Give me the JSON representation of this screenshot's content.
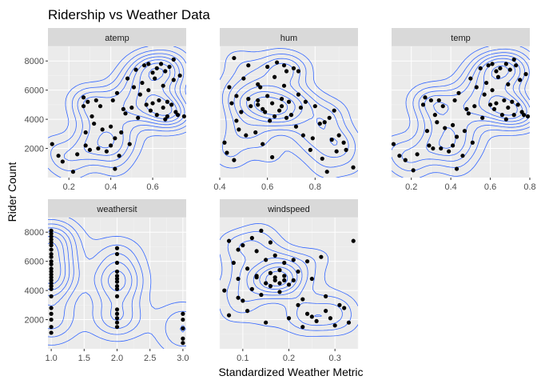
{
  "colors": {
    "panel_bg": "#ebebeb",
    "strip_bg": "#d9d9d9",
    "grid_major": "#ffffff",
    "grid_minor": "#f4f4f4",
    "tick": "#333333",
    "contour": "#3366ff",
    "point": "#000000"
  },
  "chart_data": {
    "type": "scatter",
    "title": "Ridership vs Weather Data",
    "xlabel": "Standardized Weather Metric",
    "ylabel": "Rider Count",
    "overlay": "2d density contours",
    "grid": true,
    "scales": "free_x",
    "ylim": [
      0,
      9000
    ],
    "y_ticks": [
      2000,
      4000,
      6000,
      8000
    ],
    "y_tick_labels": [
      "2000",
      "4000",
      "6000",
      "8000"
    ],
    "panels": [
      {
        "name": "atemp",
        "xlim": [
          0.1,
          0.76
        ],
        "x_ticks": [
          0.2,
          0.4,
          0.6
        ],
        "x_tick_labels": [
          "0.2",
          "0.4",
          "0.6"
        ],
        "points": [
          [
            0.12,
            2300
          ],
          [
            0.15,
            1500
          ],
          [
            0.17,
            1100
          ],
          [
            0.22,
            400
          ],
          [
            0.24,
            1600
          ],
          [
            0.27,
            4900
          ],
          [
            0.27,
            5500
          ],
          [
            0.28,
            3100
          ],
          [
            0.28,
            2200
          ],
          [
            0.29,
            5200
          ],
          [
            0.3,
            1900
          ],
          [
            0.31,
            4200
          ],
          [
            0.32,
            3700
          ],
          [
            0.33,
            5300
          ],
          [
            0.34,
            2000
          ],
          [
            0.35,
            4900
          ],
          [
            0.36,
            3300
          ],
          [
            0.38,
            1800
          ],
          [
            0.4,
            2200
          ],
          [
            0.4,
            3500
          ],
          [
            0.41,
            5300
          ],
          [
            0.42,
            2700
          ],
          [
            0.42,
            600
          ],
          [
            0.43,
            5800
          ],
          [
            0.44,
            1500
          ],
          [
            0.45,
            3100
          ],
          [
            0.46,
            4700
          ],
          [
            0.47,
            4400
          ],
          [
            0.48,
            6800
          ],
          [
            0.49,
            2300
          ],
          [
            0.5,
            4800
          ],
          [
            0.51,
            6200
          ],
          [
            0.52,
            7400
          ],
          [
            0.53,
            4100
          ],
          [
            0.54,
            5700
          ],
          [
            0.55,
            6500
          ],
          [
            0.56,
            7700
          ],
          [
            0.57,
            5000
          ],
          [
            0.58,
            6000
          ],
          [
            0.59,
            4600
          ],
          [
            0.6,
            7200
          ],
          [
            0.6,
            5100
          ],
          [
            0.61,
            6800
          ],
          [
            0.62,
            7500
          ],
          [
            0.62,
            4300
          ],
          [
            0.63,
            5300
          ],
          [
            0.64,
            7800
          ],
          [
            0.65,
            4800
          ],
          [
            0.65,
            6300
          ],
          [
            0.66,
            7300
          ],
          [
            0.67,
            5200
          ],
          [
            0.67,
            4200
          ],
          [
            0.68,
            7600
          ],
          [
            0.69,
            5000
          ],
          [
            0.7,
            6700
          ],
          [
            0.71,
            4500
          ],
          [
            0.72,
            4300
          ],
          [
            0.73,
            7000
          ],
          [
            0.75,
            4200
          ],
          [
            0.7,
            8100
          ],
          [
            0.66,
            4000
          ],
          [
            0.58,
            7800
          ]
        ]
      },
      {
        "name": "hum",
        "xlim": [
          0.4,
          0.98
        ],
        "x_ticks": [
          0.4,
          0.6,
          0.8
        ],
        "x_tick_labels": [
          "0.4",
          "0.6",
          "0.8"
        ],
        "points": [
          [
            0.42,
            2400
          ],
          [
            0.43,
            1700
          ],
          [
            0.44,
            6200
          ],
          [
            0.45,
            5100
          ],
          [
            0.46,
            8200
          ],
          [
            0.46,
            1200
          ],
          [
            0.47,
            3900
          ],
          [
            0.47,
            5600
          ],
          [
            0.48,
            3300
          ],
          [
            0.49,
            4500
          ],
          [
            0.5,
            6800
          ],
          [
            0.51,
            2900
          ],
          [
            0.52,
            7700
          ],
          [
            0.52,
            5400
          ],
          [
            0.53,
            4900
          ],
          [
            0.55,
            3100
          ],
          [
            0.56,
            5300
          ],
          [
            0.56,
            5000
          ],
          [
            0.57,
            6200
          ],
          [
            0.58,
            4700
          ],
          [
            0.58,
            2300
          ],
          [
            0.59,
            4500
          ],
          [
            0.6,
            7600
          ],
          [
            0.6,
            5600
          ],
          [
            0.61,
            3900
          ],
          [
            0.62,
            5100
          ],
          [
            0.62,
            1400
          ],
          [
            0.63,
            6900
          ],
          [
            0.63,
            4200
          ],
          [
            0.64,
            7900
          ],
          [
            0.65,
            4600
          ],
          [
            0.66,
            5400
          ],
          [
            0.66,
            4900
          ],
          [
            0.67,
            6300
          ],
          [
            0.68,
            4100
          ],
          [
            0.68,
            7300
          ],
          [
            0.69,
            5200
          ],
          [
            0.7,
            4300
          ],
          [
            0.71,
            7500
          ],
          [
            0.72,
            3500
          ],
          [
            0.73,
            7300
          ],
          [
            0.73,
            5700
          ],
          [
            0.74,
            4800
          ],
          [
            0.75,
            2900
          ],
          [
            0.76,
            5200
          ],
          [
            0.78,
            1900
          ],
          [
            0.79,
            2700
          ],
          [
            0.8,
            4900
          ],
          [
            0.82,
            3700
          ],
          [
            0.83,
            1300
          ],
          [
            0.84,
            3800
          ],
          [
            0.85,
            400
          ],
          [
            0.87,
            2600
          ],
          [
            0.88,
            4600
          ],
          [
            0.89,
            1800
          ],
          [
            0.9,
            2900
          ],
          [
            0.92,
            2400
          ],
          [
            0.93,
            1900
          ],
          [
            0.96,
            700
          ],
          [
            0.86,
            4100
          ],
          [
            0.67,
            7700
          ],
          [
            0.56,
            6400
          ]
        ]
      },
      {
        "name": "temp",
        "xlim": [
          0.1,
          0.8
        ],
        "x_ticks": [
          0.2,
          0.4,
          0.6,
          0.8
        ],
        "x_tick_labels": [
          "0.2",
          "0.4",
          "0.6",
          "0.8"
        ],
        "points": [
          [
            0.11,
            2300
          ],
          [
            0.14,
            1500
          ],
          [
            0.17,
            1200
          ],
          [
            0.21,
            500
          ],
          [
            0.23,
            1600
          ],
          [
            0.26,
            5000
          ],
          [
            0.27,
            5500
          ],
          [
            0.28,
            3200
          ],
          [
            0.29,
            2200
          ],
          [
            0.3,
            5300
          ],
          [
            0.31,
            2000
          ],
          [
            0.32,
            4300
          ],
          [
            0.33,
            3800
          ],
          [
            0.34,
            5300
          ],
          [
            0.35,
            2000
          ],
          [
            0.36,
            4900
          ],
          [
            0.37,
            3400
          ],
          [
            0.39,
            1800
          ],
          [
            0.41,
            2200
          ],
          [
            0.41,
            3600
          ],
          [
            0.42,
            5300
          ],
          [
            0.43,
            2800
          ],
          [
            0.43,
            600
          ],
          [
            0.44,
            5800
          ],
          [
            0.46,
            1500
          ],
          [
            0.47,
            3200
          ],
          [
            0.48,
            4700
          ],
          [
            0.49,
            4400
          ],
          [
            0.5,
            6800
          ],
          [
            0.51,
            2400
          ],
          [
            0.52,
            4900
          ],
          [
            0.53,
            6200
          ],
          [
            0.55,
            7500
          ],
          [
            0.56,
            4100
          ],
          [
            0.57,
            5700
          ],
          [
            0.58,
            6500
          ],
          [
            0.59,
            7700
          ],
          [
            0.6,
            5000
          ],
          [
            0.61,
            6000
          ],
          [
            0.62,
            4700
          ],
          [
            0.63,
            7300
          ],
          [
            0.63,
            5100
          ],
          [
            0.64,
            6900
          ],
          [
            0.65,
            7500
          ],
          [
            0.66,
            4300
          ],
          [
            0.67,
            5300
          ],
          [
            0.68,
            7800
          ],
          [
            0.69,
            4800
          ],
          [
            0.69,
            6400
          ],
          [
            0.7,
            7400
          ],
          [
            0.71,
            5200
          ],
          [
            0.72,
            4300
          ],
          [
            0.73,
            7700
          ],
          [
            0.74,
            5000
          ],
          [
            0.75,
            6700
          ],
          [
            0.76,
            4500
          ],
          [
            0.77,
            4300
          ],
          [
            0.78,
            7100
          ],
          [
            0.79,
            4200
          ],
          [
            0.72,
            8100
          ],
          [
            0.68,
            4000
          ],
          [
            0.61,
            7800
          ]
        ]
      },
      {
        "name": "weathersit",
        "xlim": [
          0.95,
          3.05
        ],
        "x_ticks": [
          1.0,
          1.5,
          2.0,
          2.5,
          3.0
        ],
        "x_tick_labels": [
          "1.0",
          "1.5",
          "2.0",
          "2.5",
          "3.0"
        ],
        "points": [
          [
            1,
            8100
          ],
          [
            1,
            7900
          ],
          [
            1,
            7700
          ],
          [
            1,
            7500
          ],
          [
            1,
            7300
          ],
          [
            1,
            7100
          ],
          [
            1,
            6800
          ],
          [
            1,
            6500
          ],
          [
            1,
            6300
          ],
          [
            1,
            6000
          ],
          [
            1,
            5800
          ],
          [
            1,
            5500
          ],
          [
            1,
            5300
          ],
          [
            1,
            5100
          ],
          [
            1,
            4900
          ],
          [
            1,
            4700
          ],
          [
            1,
            4500
          ],
          [
            1,
            4300
          ],
          [
            1,
            4100
          ],
          [
            1,
            3600
          ],
          [
            1,
            2800
          ],
          [
            1,
            2400
          ],
          [
            1,
            2000
          ],
          [
            1,
            1500
          ],
          [
            1,
            1100
          ],
          [
            2,
            6900
          ],
          [
            2,
            6500
          ],
          [
            2,
            5900
          ],
          [
            2,
            5300
          ],
          [
            2,
            5000
          ],
          [
            2,
            4800
          ],
          [
            2,
            4600
          ],
          [
            2,
            4300
          ],
          [
            2,
            4100
          ],
          [
            2,
            3600
          ],
          [
            2,
            2700
          ],
          [
            2,
            2400
          ],
          [
            2,
            2100
          ],
          [
            2,
            1800
          ],
          [
            2,
            1500
          ],
          [
            3,
            2400
          ],
          [
            3,
            2000
          ],
          [
            3,
            1400
          ],
          [
            3,
            700
          ],
          [
            3,
            400
          ]
        ]
      },
      {
        "name": "windspeed",
        "xlim": [
          0.05,
          0.35
        ],
        "x_ticks": [
          0.1,
          0.2,
          0.3
        ],
        "x_tick_labels": [
          "0.1",
          "0.2",
          "0.3"
        ],
        "points": [
          [
            0.06,
            4000
          ],
          [
            0.07,
            7400
          ],
          [
            0.07,
            2300
          ],
          [
            0.08,
            5900
          ],
          [
            0.09,
            6800
          ],
          [
            0.09,
            4800
          ],
          [
            0.1,
            7100
          ],
          [
            0.1,
            3300
          ],
          [
            0.11,
            5500
          ],
          [
            0.11,
            2600
          ],
          [
            0.12,
            7600
          ],
          [
            0.12,
            4100
          ],
          [
            0.13,
            6700
          ],
          [
            0.13,
            5000
          ],
          [
            0.14,
            8100
          ],
          [
            0.14,
            3700
          ],
          [
            0.15,
            6100
          ],
          [
            0.15,
            4500
          ],
          [
            0.15,
            1800
          ],
          [
            0.16,
            7300
          ],
          [
            0.16,
            5200
          ],
          [
            0.16,
            4300
          ],
          [
            0.17,
            4900
          ],
          [
            0.17,
            6400
          ],
          [
            0.17,
            4700
          ],
          [
            0.18,
            5400
          ],
          [
            0.18,
            4500
          ],
          [
            0.18,
            3900
          ],
          [
            0.19,
            5000
          ],
          [
            0.19,
            5900
          ],
          [
            0.19,
            4700
          ],
          [
            0.2,
            4400
          ],
          [
            0.2,
            2100
          ],
          [
            0.21,
            4700
          ],
          [
            0.21,
            6100
          ],
          [
            0.22,
            3000
          ],
          [
            0.22,
            5300
          ],
          [
            0.23,
            3400
          ],
          [
            0.23,
            1500
          ],
          [
            0.24,
            2400
          ],
          [
            0.25,
            2200
          ],
          [
            0.25,
            4800
          ],
          [
            0.26,
            1900
          ],
          [
            0.27,
            6300
          ],
          [
            0.28,
            2600
          ],
          [
            0.28,
            3600
          ],
          [
            0.29,
            2100
          ],
          [
            0.3,
            1600
          ],
          [
            0.31,
            3000
          ],
          [
            0.32,
            2800
          ],
          [
            0.33,
            1800
          ],
          [
            0.34,
            7400
          ],
          [
            0.13,
            4900
          ],
          [
            0.09,
            3500
          ],
          [
            0.24,
            6000
          ]
        ]
      }
    ]
  }
}
